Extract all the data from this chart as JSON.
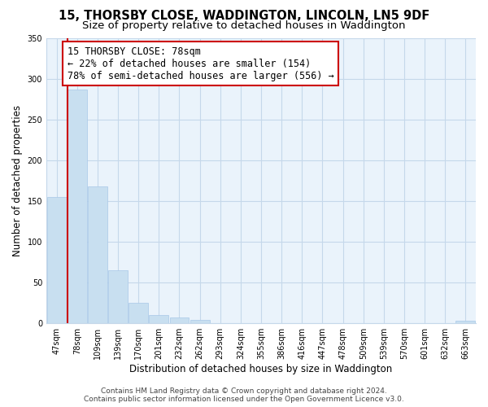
{
  "title": "15, THORSBY CLOSE, WADDINGTON, LINCOLN, LN5 9DF",
  "subtitle": "Size of property relative to detached houses in Waddington",
  "xlabel": "Distribution of detached houses by size in Waddington",
  "ylabel": "Number of detached properties",
  "bar_labels": [
    "47sqm",
    "78sqm",
    "109sqm",
    "139sqm",
    "170sqm",
    "201sqm",
    "232sqm",
    "262sqm",
    "293sqm",
    "324sqm",
    "355sqm",
    "386sqm",
    "416sqm",
    "447sqm",
    "478sqm",
    "509sqm",
    "539sqm",
    "570sqm",
    "601sqm",
    "632sqm",
    "663sqm"
  ],
  "bar_values": [
    155,
    287,
    168,
    65,
    25,
    10,
    7,
    4,
    0,
    0,
    0,
    0,
    0,
    0,
    0,
    0,
    0,
    0,
    0,
    0,
    3
  ],
  "bar_color": "#c8dff0",
  "bar_edge_color": "#a8c8e8",
  "highlight_bar_index": 1,
  "vline_color": "#cc0000",
  "annotation_title": "15 THORSBY CLOSE: 78sqm",
  "annotation_line1": "← 22% of detached houses are smaller (154)",
  "annotation_line2": "78% of semi-detached houses are larger (556) →",
  "annotation_box_color": "#ffffff",
  "annotation_box_edge_color": "#cc0000",
  "ylim": [
    0,
    350
  ],
  "yticks": [
    0,
    50,
    100,
    150,
    200,
    250,
    300,
    350
  ],
  "footer1": "Contains HM Land Registry data © Crown copyright and database right 2024.",
  "footer2": "Contains public sector information licensed under the Open Government Licence v3.0.",
  "background_color": "#ffffff",
  "plot_bg_color": "#eaf3fb",
  "grid_color": "#c5d8ea",
  "title_fontsize": 10.5,
  "subtitle_fontsize": 9.5,
  "axis_label_fontsize": 8.5,
  "tick_fontsize": 7,
  "annotation_fontsize": 8.5,
  "footer_fontsize": 6.5
}
